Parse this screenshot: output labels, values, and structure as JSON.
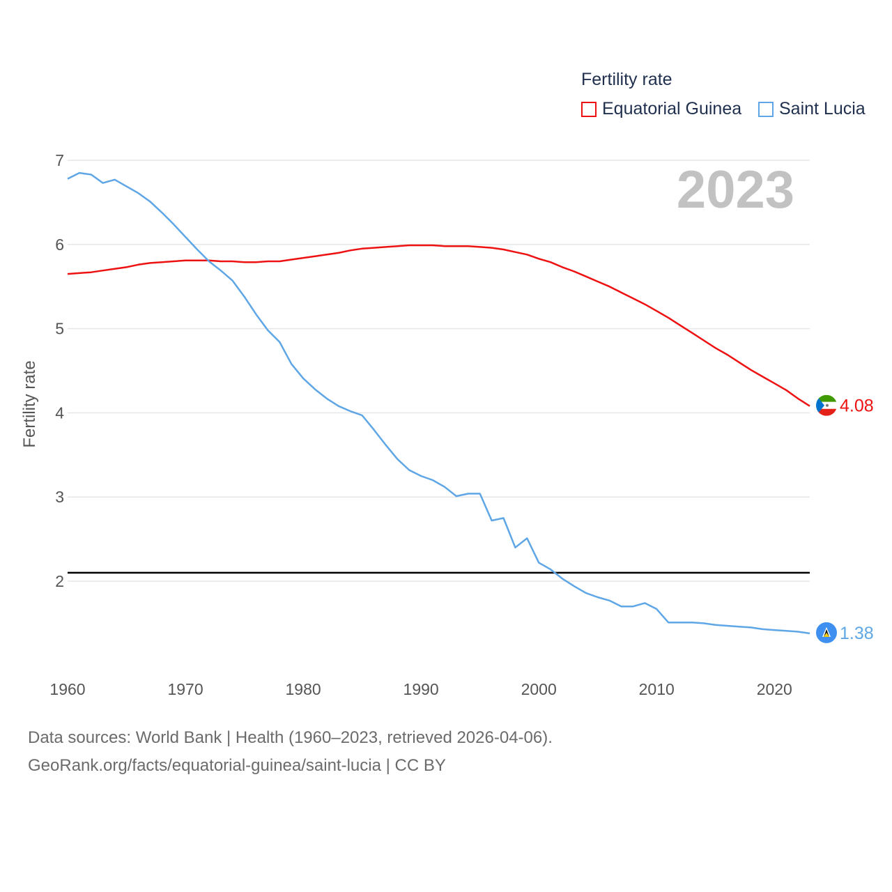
{
  "chart_data": {
    "type": "line",
    "title": "Fertility rate",
    "ylabel": "Fertility rate",
    "xlabel": "",
    "year_label": "2023",
    "xlim": [
      1960,
      2023
    ],
    "ylim": [
      1,
      7
    ],
    "x_ticks": [
      1960,
      1970,
      1980,
      1990,
      2000,
      2010,
      2020
    ],
    "y_ticks": [
      2,
      3,
      4,
      5,
      6,
      7
    ],
    "reference_line": {
      "value": 2.1,
      "color": "#000000"
    },
    "x": [
      1960,
      1961,
      1962,
      1963,
      1964,
      1965,
      1966,
      1967,
      1968,
      1969,
      1970,
      1971,
      1972,
      1973,
      1974,
      1975,
      1976,
      1977,
      1978,
      1979,
      1980,
      1981,
      1982,
      1983,
      1984,
      1985,
      1986,
      1987,
      1988,
      1989,
      1990,
      1991,
      1992,
      1993,
      1994,
      1995,
      1996,
      1997,
      1998,
      1999,
      2000,
      2001,
      2002,
      2003,
      2004,
      2005,
      2006,
      2007,
      2008,
      2009,
      2010,
      2011,
      2012,
      2013,
      2014,
      2015,
      2016,
      2017,
      2018,
      2019,
      2020,
      2021,
      2022,
      2023
    ],
    "series": [
      {
        "name": "Equatorial Guinea",
        "color": "#ee1111",
        "end_label": "4.08",
        "flag": "equatorial-guinea-flag-icon",
        "values": [
          5.65,
          5.66,
          5.67,
          5.69,
          5.71,
          5.73,
          5.76,
          5.78,
          5.79,
          5.8,
          5.81,
          5.81,
          5.81,
          5.8,
          5.8,
          5.79,
          5.79,
          5.8,
          5.8,
          5.82,
          5.84,
          5.86,
          5.88,
          5.9,
          5.93,
          5.95,
          5.96,
          5.97,
          5.98,
          5.99,
          5.99,
          5.99,
          5.98,
          5.98,
          5.98,
          5.97,
          5.96,
          5.94,
          5.91,
          5.88,
          5.83,
          5.79,
          5.73,
          5.68,
          5.62,
          5.56,
          5.5,
          5.43,
          5.36,
          5.29,
          5.21,
          5.13,
          5.04,
          4.95,
          4.86,
          4.77,
          4.69,
          4.6,
          4.51,
          4.43,
          4.35,
          4.27,
          4.17,
          4.08
        ]
      },
      {
        "name": "Saint Lucia",
        "color": "#5ea6e6",
        "end_label": "1.38",
        "flag": "saint-lucia-flag-icon",
        "values": [
          6.78,
          6.85,
          6.83,
          6.73,
          6.77,
          6.69,
          6.61,
          6.51,
          6.38,
          6.24,
          6.09,
          5.94,
          5.8,
          5.69,
          5.57,
          5.38,
          5.17,
          4.98,
          4.84,
          4.58,
          4.41,
          4.28,
          4.17,
          4.08,
          4.02,
          3.97,
          3.8,
          3.62,
          3.45,
          3.32,
          3.25,
          3.2,
          3.12,
          3.01,
          3.04,
          3.04,
          2.72,
          2.75,
          2.4,
          2.51,
          2.22,
          2.14,
          2.03,
          1.94,
          1.86,
          1.81,
          1.77,
          1.7,
          1.7,
          1.74,
          1.67,
          1.51,
          1.51,
          1.51,
          1.5,
          1.48,
          1.47,
          1.46,
          1.45,
          1.43,
          1.42,
          1.41,
          1.4,
          1.38
        ]
      }
    ]
  },
  "footer": {
    "line1": "Data sources: World Bank | Health (1960–2023, retrieved 2026-04-06).",
    "line2": "GeoRank.org/facts/equatorial-guinea/saint-lucia | CC BY"
  }
}
